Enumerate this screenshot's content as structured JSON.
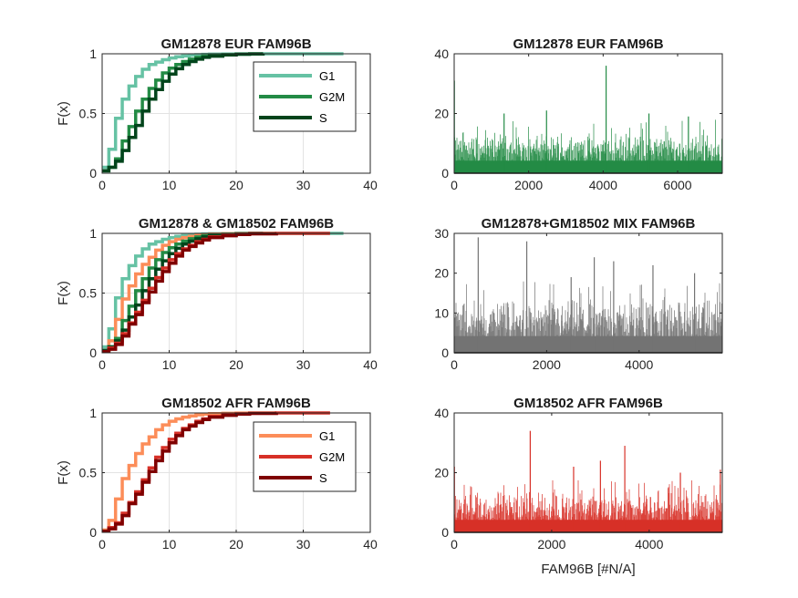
{
  "figure": {
    "background": "#ffffff",
    "axis_color": "#262626",
    "grid_color": "#e3e3e3"
  },
  "chart_data": [
    {
      "type": "line",
      "title": "GM12878 EUR FAM96B",
      "ylabel": "F(x)",
      "xlabel": "",
      "xlim": [
        0,
        40
      ],
      "ylim": [
        0,
        1
      ],
      "xticks": [
        0,
        10,
        20,
        30,
        40
      ],
      "yticks": [
        0,
        0.5,
        1
      ],
      "grid": true,
      "legend_position": "top-right",
      "series": [
        {
          "name": "G1",
          "color": "#66c2a4",
          "x": [
            0,
            1,
            2,
            3,
            4,
            5,
            6,
            7,
            8,
            9,
            10,
            11,
            12,
            13,
            14,
            15,
            16,
            18,
            20,
            24,
            36
          ],
          "y": [
            0.05,
            0.2,
            0.46,
            0.62,
            0.73,
            0.81,
            0.87,
            0.91,
            0.93,
            0.95,
            0.965,
            0.975,
            0.982,
            0.988,
            0.992,
            0.995,
            0.997,
            0.998,
            0.999,
            1,
            1
          ]
        },
        {
          "name": "G2M",
          "color": "#238b45",
          "x": [
            0,
            1,
            2,
            3,
            4,
            5,
            6,
            7,
            8,
            9,
            10,
            11,
            12,
            13,
            14,
            15,
            16,
            18,
            20,
            22,
            24
          ],
          "y": [
            0.02,
            0.05,
            0.12,
            0.27,
            0.39,
            0.52,
            0.62,
            0.71,
            0.78,
            0.84,
            0.88,
            0.91,
            0.935,
            0.955,
            0.97,
            0.98,
            0.987,
            0.993,
            0.997,
            0.999,
            1
          ]
        },
        {
          "name": "S",
          "color": "#00441b",
          "x": [
            0,
            1,
            2,
            3,
            4,
            5,
            6,
            7,
            8,
            9,
            10,
            11,
            12,
            13,
            14,
            15,
            16,
            18,
            20,
            22,
            24
          ],
          "y": [
            0.02,
            0.05,
            0.1,
            0.19,
            0.3,
            0.4,
            0.52,
            0.62,
            0.7,
            0.77,
            0.83,
            0.875,
            0.91,
            0.935,
            0.955,
            0.97,
            0.98,
            0.99,
            0.996,
            0.999,
            1
          ]
        }
      ]
    },
    {
      "type": "bar",
      "title": "GM12878 EUR FAM96B",
      "ylabel": "",
      "xlabel": "",
      "xlim": [
        0,
        7200
      ],
      "ylim": [
        0,
        40
      ],
      "xticks": [
        0,
        2000,
        4000,
        6000
      ],
      "yticks": [
        0,
        20,
        40
      ],
      "grid": false,
      "color": "#238b45",
      "n": 7200,
      "typical_max": 12,
      "peaks": [
        {
          "x": 5,
          "y": 31
        },
        {
          "x": 4080,
          "y": 36
        },
        {
          "x": 1340,
          "y": 20
        },
        {
          "x": 2480,
          "y": 21
        },
        {
          "x": 5230,
          "y": 20
        },
        {
          "x": 6290,
          "y": 19
        }
      ]
    },
    {
      "type": "line",
      "title": "GM12878 & GM18502 FAM96B",
      "ylabel": "F(x)",
      "xlabel": "",
      "xlim": [
        0,
        40
      ],
      "ylim": [
        0,
        1
      ],
      "xticks": [
        0,
        10,
        20,
        30,
        40
      ],
      "yticks": [
        0,
        0.5,
        1
      ],
      "grid": true,
      "legend_position": "none",
      "series": [
        {
          "name": "",
          "color": "#66c2a4",
          "x": [
            0,
            1,
            2,
            3,
            4,
            5,
            6,
            7,
            8,
            9,
            10,
            11,
            12,
            13,
            14,
            15,
            16,
            18,
            20,
            24,
            34,
            36
          ],
          "y": [
            0.05,
            0.2,
            0.46,
            0.62,
            0.73,
            0.81,
            0.87,
            0.91,
            0.93,
            0.95,
            0.965,
            0.975,
            0.982,
            0.988,
            0.992,
            0.995,
            0.997,
            0.998,
            0.999,
            1,
            1,
            1
          ]
        },
        {
          "name": "",
          "color": "#fc8d59",
          "x": [
            0,
            1,
            2,
            3,
            4,
            5,
            6,
            7,
            8,
            9,
            10,
            11,
            12,
            13,
            14,
            15,
            16,
            18,
            20,
            22,
            26
          ],
          "y": [
            0.02,
            0.1,
            0.28,
            0.45,
            0.56,
            0.66,
            0.74,
            0.8,
            0.86,
            0.9,
            0.93,
            0.95,
            0.965,
            0.975,
            0.985,
            0.99,
            0.994,
            0.997,
            0.999,
            1,
            1
          ]
        },
        {
          "name": "",
          "color": "#238b45",
          "x": [
            0,
            1,
            2,
            3,
            4,
            5,
            6,
            7,
            8,
            9,
            10,
            11,
            12,
            13,
            14,
            15,
            16,
            18,
            20,
            22,
            24
          ],
          "y": [
            0.02,
            0.05,
            0.12,
            0.27,
            0.39,
            0.52,
            0.62,
            0.71,
            0.78,
            0.84,
            0.88,
            0.91,
            0.935,
            0.955,
            0.97,
            0.98,
            0.987,
            0.993,
            0.997,
            0.999,
            1
          ]
        },
        {
          "name": "",
          "color": "#00441b",
          "x": [
            0,
            1,
            2,
            3,
            4,
            5,
            6,
            7,
            8,
            9,
            10,
            11,
            12,
            13,
            14,
            15,
            16,
            18,
            20,
            22,
            24
          ],
          "y": [
            0.02,
            0.05,
            0.1,
            0.19,
            0.3,
            0.4,
            0.52,
            0.62,
            0.7,
            0.77,
            0.83,
            0.875,
            0.91,
            0.935,
            0.955,
            0.97,
            0.98,
            0.99,
            0.996,
            0.999,
            1
          ]
        },
        {
          "name": "",
          "color": "#d73027",
          "x": [
            0,
            1,
            2,
            3,
            4,
            5,
            6,
            7,
            8,
            9,
            10,
            11,
            12,
            13,
            14,
            15,
            16,
            18,
            20,
            22,
            26,
            34
          ],
          "y": [
            0.01,
            0.04,
            0.08,
            0.16,
            0.25,
            0.34,
            0.44,
            0.54,
            0.63,
            0.71,
            0.78,
            0.83,
            0.87,
            0.9,
            0.93,
            0.95,
            0.97,
            0.985,
            0.993,
            0.997,
            1,
            1
          ]
        },
        {
          "name": "",
          "color": "#7f0000",
          "x": [
            0,
            1,
            2,
            3,
            4,
            5,
            6,
            7,
            8,
            9,
            10,
            11,
            12,
            13,
            14,
            15,
            16,
            18,
            20,
            22,
            26
          ],
          "y": [
            0.01,
            0.03,
            0.07,
            0.14,
            0.24,
            0.32,
            0.42,
            0.51,
            0.6,
            0.68,
            0.75,
            0.81,
            0.86,
            0.89,
            0.92,
            0.945,
            0.965,
            0.98,
            0.99,
            0.996,
            1
          ]
        }
      ]
    },
    {
      "type": "bar",
      "title": "GM12878+GM18502 MIX FAM96B",
      "ylabel": "",
      "xlabel": "",
      "xlim": [
        0,
        5800
      ],
      "ylim": [
        0,
        30
      ],
      "xticks": [
        0,
        2000,
        4000
      ],
      "yticks": [
        0,
        10,
        20,
        30
      ],
      "grid": false,
      "color": "#737373",
      "n": 5800,
      "typical_max": 12,
      "peaks": [
        {
          "x": 520,
          "y": 29
        },
        {
          "x": 1570,
          "y": 28
        },
        {
          "x": 3030,
          "y": 24
        },
        {
          "x": 3450,
          "y": 23
        },
        {
          "x": 4300,
          "y": 22
        },
        {
          "x": 2530,
          "y": 19
        },
        {
          "x": 5200,
          "y": 20
        }
      ]
    },
    {
      "type": "line",
      "title": "GM18502 AFR FAM96B",
      "ylabel": "F(x)",
      "xlabel": "",
      "xlim": [
        0,
        40
      ],
      "ylim": [
        0,
        1
      ],
      "xticks": [
        0,
        10,
        20,
        30,
        40
      ],
      "yticks": [
        0,
        0.5,
        1
      ],
      "grid": true,
      "legend_position": "top-right",
      "series": [
        {
          "name": "G1",
          "color": "#fc8d59",
          "x": [
            0,
            1,
            2,
            3,
            4,
            5,
            6,
            7,
            8,
            9,
            10,
            11,
            12,
            13,
            14,
            15,
            16,
            18,
            20,
            22,
            26
          ],
          "y": [
            0.02,
            0.1,
            0.28,
            0.45,
            0.56,
            0.66,
            0.74,
            0.8,
            0.86,
            0.9,
            0.93,
            0.95,
            0.965,
            0.975,
            0.985,
            0.99,
            0.994,
            0.997,
            0.999,
            1,
            1
          ]
        },
        {
          "name": "G2M",
          "color": "#d73027",
          "x": [
            0,
            1,
            2,
            3,
            4,
            5,
            6,
            7,
            8,
            9,
            10,
            11,
            12,
            13,
            14,
            15,
            16,
            18,
            20,
            22,
            26,
            34
          ],
          "y": [
            0.01,
            0.04,
            0.08,
            0.16,
            0.25,
            0.34,
            0.44,
            0.54,
            0.63,
            0.71,
            0.78,
            0.83,
            0.87,
            0.9,
            0.93,
            0.95,
            0.97,
            0.985,
            0.993,
            0.997,
            1,
            1
          ]
        },
        {
          "name": "S",
          "color": "#7f0000",
          "x": [
            0,
            1,
            2,
            3,
            4,
            5,
            6,
            7,
            8,
            9,
            10,
            11,
            12,
            13,
            14,
            15,
            16,
            18,
            20,
            22,
            26
          ],
          "y": [
            0.01,
            0.03,
            0.07,
            0.14,
            0.24,
            0.32,
            0.42,
            0.51,
            0.6,
            0.68,
            0.75,
            0.81,
            0.86,
            0.89,
            0.92,
            0.945,
            0.965,
            0.98,
            0.99,
            0.996,
            1
          ]
        }
      ]
    },
    {
      "type": "bar",
      "title": "GM18502 AFR FAM96B",
      "ylabel": "",
      "xlabel": "FAM96B [#N/A]",
      "xlim": [
        0,
        5500
      ],
      "ylim": [
        0,
        40
      ],
      "xticks": [
        0,
        2000,
        4000
      ],
      "yticks": [
        0,
        20,
        40
      ],
      "grid": false,
      "color": "#d73027",
      "n": 5500,
      "typical_max": 12,
      "peaks": [
        {
          "x": 5,
          "y": 22
        },
        {
          "x": 1560,
          "y": 34
        },
        {
          "x": 3500,
          "y": 29
        },
        {
          "x": 3000,
          "y": 24
        },
        {
          "x": 2450,
          "y": 22
        },
        {
          "x": 4640,
          "y": 20
        },
        {
          "x": 5460,
          "y": 21
        }
      ]
    }
  ]
}
